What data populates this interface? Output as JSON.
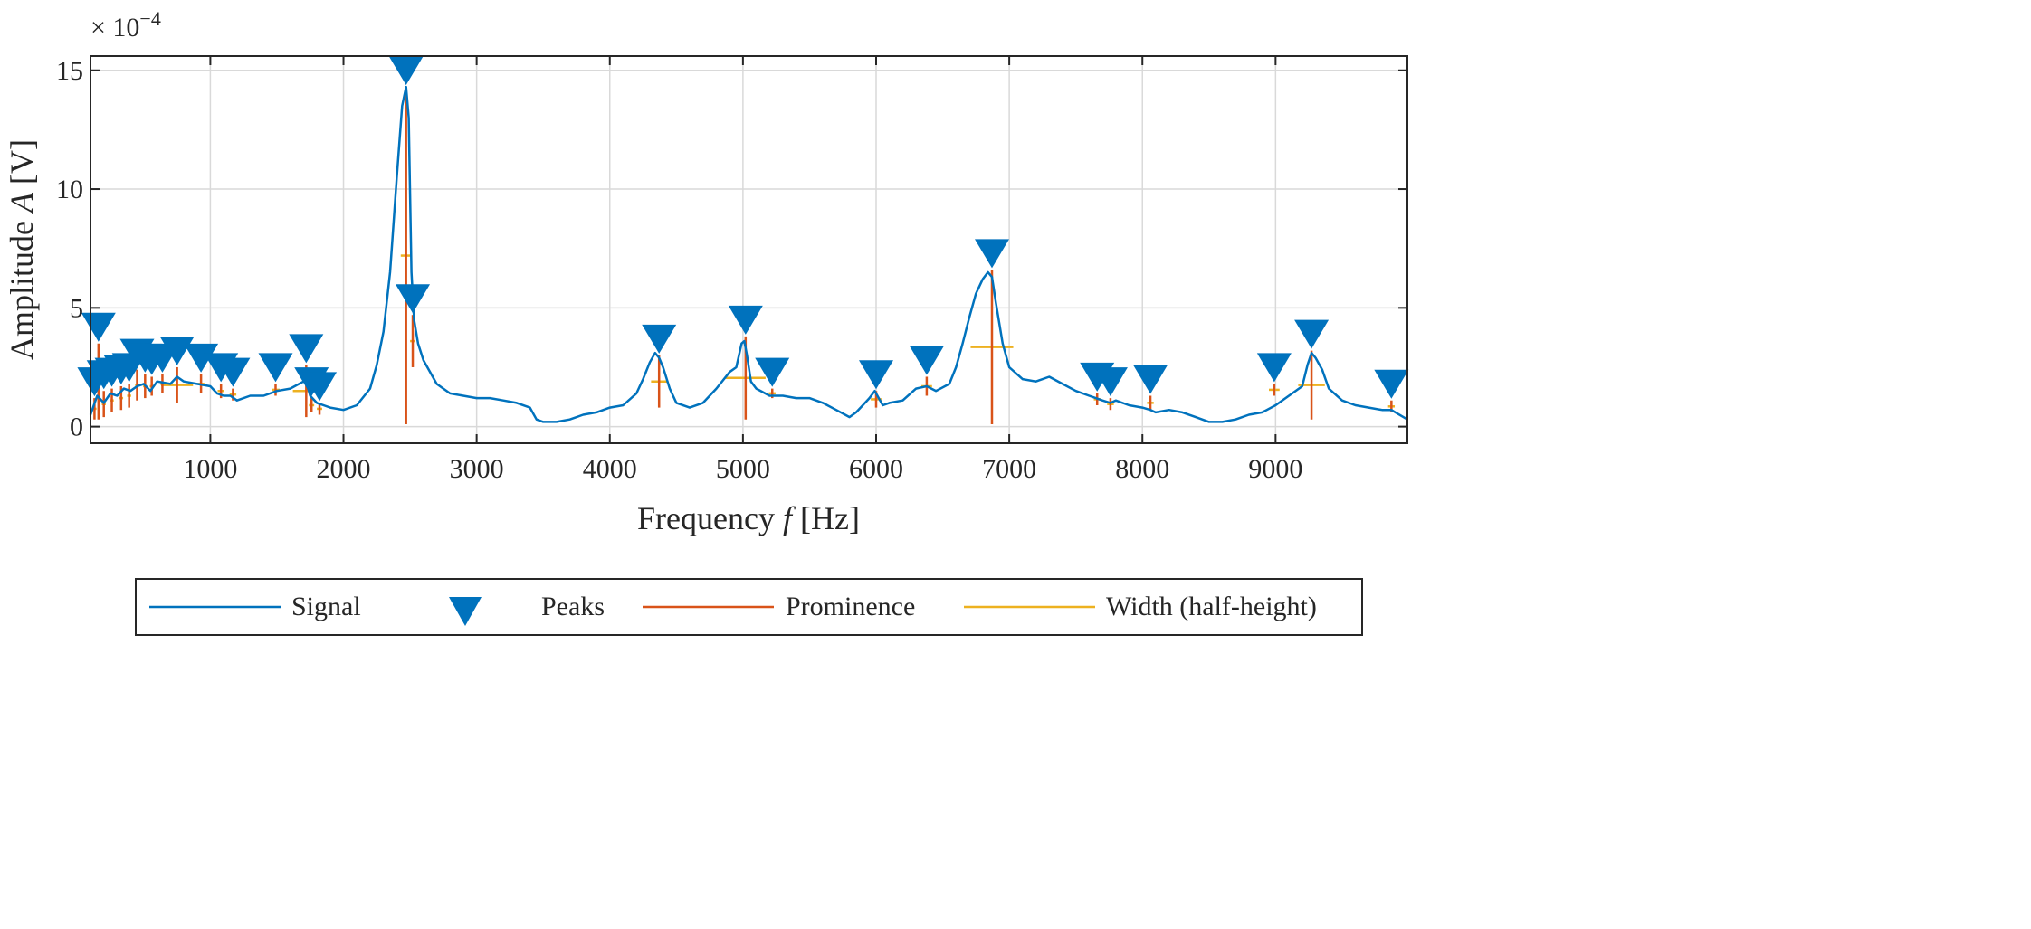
{
  "chart_data": {
    "type": "line",
    "title": "",
    "xlabel": "Frequency f [Hz]",
    "xlabel_parts": {
      "before": "Frequency ",
      "var": "f",
      "after": " [Hz]"
    },
    "ylabel": "Amplitude A [V]",
    "ylabel_parts": {
      "before": "Amplitude ",
      "var": "A",
      "after": " [V]"
    },
    "exponent_label": {
      "base": "× 10",
      "power": "−4"
    },
    "xlim": [
      100,
      9990
    ],
    "ylim": [
      -0.7,
      15.6
    ],
    "xticks": [
      1000,
      2000,
      3000,
      4000,
      5000,
      6000,
      7000,
      8000,
      9000
    ],
    "yticks": [
      0,
      5,
      10,
      15
    ],
    "grid": true,
    "colors": {
      "signal": "#0072BD",
      "peaks": "#0072BD",
      "prominence": "#D95319",
      "width": "#EDB120",
      "grid": "#d9d9d9",
      "axis": "#262626"
    },
    "signal": {
      "name": "Signal",
      "x": [
        100,
        150,
        200,
        250,
        300,
        350,
        400,
        450,
        500,
        550,
        600,
        700,
        750,
        800,
        900,
        1000,
        1050,
        1100,
        1150,
        1200,
        1300,
        1400,
        1500,
        1600,
        1700,
        1720,
        1750,
        1800,
        1850,
        1900,
        2000,
        2100,
        2200,
        2250,
        2300,
        2350,
        2400,
        2440,
        2470,
        2490,
        2510,
        2530,
        2560,
        2600,
        2700,
        2800,
        2900,
        3000,
        3100,
        3200,
        3300,
        3400,
        3450,
        3500,
        3600,
        3700,
        3800,
        3900,
        4000,
        4100,
        4200,
        4250,
        4300,
        4340,
        4370,
        4400,
        4450,
        4500,
        4600,
        4700,
        4800,
        4900,
        4950,
        4990,
        5010,
        5030,
        5060,
        5100,
        5200,
        5300,
        5400,
        5500,
        5600,
        5700,
        5800,
        5850,
        5900,
        5950,
        5990,
        6020,
        6050,
        6100,
        6200,
        6300,
        6380,
        6450,
        6550,
        6600,
        6650,
        6700,
        6750,
        6800,
        6840,
        6870,
        6900,
        6950,
        7000,
        7100,
        7200,
        7300,
        7400,
        7500,
        7600,
        7650,
        7700,
        7760,
        7800,
        7900,
        8000,
        8060,
        8100,
        8200,
        8300,
        8400,
        8500,
        8600,
        8700,
        8800,
        8900,
        9000,
        9100,
        9200,
        9240,
        9270,
        9300,
        9350,
        9400,
        9500,
        9600,
        9700,
        9800,
        9870,
        9900,
        9990
      ],
      "y": [
        0.5,
        1.3,
        1.0,
        1.4,
        1.3,
        1.6,
        1.5,
        1.7,
        1.8,
        1.5,
        1.9,
        1.8,
        2.1,
        1.9,
        1.8,
        1.7,
        1.4,
        1.3,
        1.3,
        1.1,
        1.3,
        1.3,
        1.5,
        1.6,
        1.9,
        1.9,
        1.3,
        1.0,
        0.9,
        0.8,
        0.7,
        0.9,
        1.6,
        2.6,
        4.0,
        6.5,
        10.5,
        13.5,
        14.3,
        13.0,
        6.5,
        4.5,
        3.5,
        2.8,
        1.8,
        1.4,
        1.3,
        1.2,
        1.2,
        1.1,
        1.0,
        0.8,
        0.3,
        0.2,
        0.2,
        0.3,
        0.5,
        0.6,
        0.8,
        0.9,
        1.4,
        2.0,
        2.7,
        3.1,
        2.9,
        2.5,
        1.6,
        1.0,
        0.8,
        1.0,
        1.6,
        2.3,
        2.5,
        3.5,
        3.6,
        3.0,
        1.9,
        1.6,
        1.3,
        1.3,
        1.2,
        1.2,
        1.0,
        0.7,
        0.4,
        0.6,
        0.9,
        1.2,
        1.5,
        1.2,
        0.9,
        1.0,
        1.1,
        1.6,
        1.7,
        1.5,
        1.8,
        2.5,
        3.5,
        4.6,
        5.6,
        6.2,
        6.5,
        6.3,
        5.2,
        3.5,
        2.5,
        2.0,
        1.9,
        2.1,
        1.8,
        1.5,
        1.3,
        1.2,
        1.1,
        1.0,
        1.1,
        0.9,
        0.8,
        0.7,
        0.6,
        0.7,
        0.6,
        0.4,
        0.2,
        0.2,
        0.3,
        0.5,
        0.6,
        0.9,
        1.3,
        1.7,
        2.6,
        3.1,
        2.9,
        2.4,
        1.6,
        1.1,
        0.9,
        0.8,
        0.7,
        0.7,
        0.6,
        0.3
      ]
    },
    "peaks": [
      {
        "x": 130,
        "y": 1.2,
        "base": 0.3,
        "half_width": 15
      },
      {
        "x": 160,
        "y": 3.5,
        "base": 0.3,
        "half_width": 20
      },
      {
        "x": 200,
        "y": 1.5,
        "base": 0.4,
        "half_width": 15
      },
      {
        "x": 260,
        "y": 1.6,
        "base": 0.6,
        "half_width": 15
      },
      {
        "x": 330,
        "y": 1.7,
        "base": 0.7,
        "half_width": 15
      },
      {
        "x": 390,
        "y": 1.8,
        "base": 0.8,
        "half_width": 15
      },
      {
        "x": 450,
        "y": 2.4,
        "base": 1.1,
        "half_width": 15
      },
      {
        "x": 510,
        "y": 2.2,
        "base": 1.2,
        "half_width": 15
      },
      {
        "x": 560,
        "y": 2.1,
        "base": 1.3,
        "half_width": 15
      },
      {
        "x": 640,
        "y": 2.2,
        "base": 1.4,
        "half_width": 15
      },
      {
        "x": 750,
        "y": 2.5,
        "base": 1.0,
        "half_width": 120
      },
      {
        "x": 930,
        "y": 2.2,
        "base": 1.4,
        "half_width": 25
      },
      {
        "x": 1080,
        "y": 1.8,
        "base": 1.2,
        "half_width": 25
      },
      {
        "x": 1170,
        "y": 1.6,
        "base": 1.1,
        "half_width": 25
      },
      {
        "x": 1490,
        "y": 1.8,
        "base": 1.3,
        "half_width": 30
      },
      {
        "x": 1720,
        "y": 2.6,
        "base": 0.4,
        "half_width": 100
      },
      {
        "x": 1760,
        "y": 1.2,
        "base": 0.6,
        "half_width": 20
      },
      {
        "x": 1820,
        "y": 1.0,
        "base": 0.5,
        "half_width": 20
      },
      {
        "x": 2470,
        "y": 14.3,
        "base": 0.1,
        "half_width": 40
      },
      {
        "x": 2520,
        "y": 4.7,
        "base": 2.5,
        "half_width": 20
      },
      {
        "x": 4370,
        "y": 3.0,
        "base": 0.8,
        "half_width": 60
      },
      {
        "x": 5020,
        "y": 3.8,
        "base": 0.3,
        "half_width": 150
      },
      {
        "x": 5220,
        "y": 1.6,
        "base": 1.2,
        "half_width": 25
      },
      {
        "x": 6000,
        "y": 1.5,
        "base": 0.8,
        "half_width": 40
      },
      {
        "x": 6380,
        "y": 2.1,
        "base": 1.3,
        "half_width": 40
      },
      {
        "x": 6870,
        "y": 6.6,
        "base": 0.1,
        "half_width": 160
      },
      {
        "x": 7660,
        "y": 1.4,
        "base": 0.9,
        "half_width": 25
      },
      {
        "x": 7760,
        "y": 1.2,
        "base": 0.7,
        "half_width": 25
      },
      {
        "x": 8060,
        "y": 1.3,
        "base": 0.7,
        "half_width": 25
      },
      {
        "x": 8990,
        "y": 1.8,
        "base": 1.3,
        "half_width": 40
      },
      {
        "x": 9270,
        "y": 3.2,
        "base": 0.3,
        "half_width": 100
      },
      {
        "x": 9870,
        "y": 1.1,
        "base": 0.6,
        "half_width": 25
      }
    ],
    "legend": {
      "position": "bottom-outside",
      "entries": [
        "Signal",
        "Peaks",
        "Prominence",
        "Width (half-height)"
      ]
    }
  }
}
